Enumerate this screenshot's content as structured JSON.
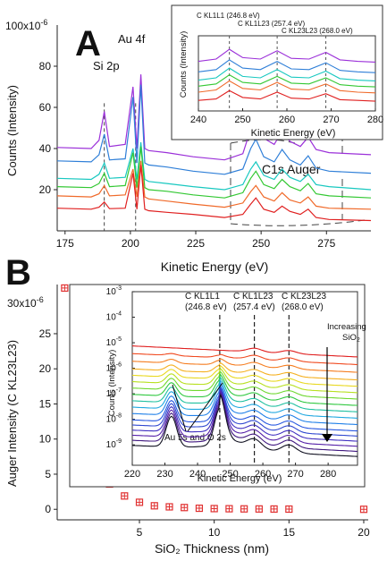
{
  "chart_data": [
    {
      "panel_label": "A",
      "type": "line",
      "xlabel": "Kinetic Energy (eV)",
      "ylabel": "Counts (Intensity)",
      "xlim": [
        172,
        292
      ],
      "ylim": [
        0,
        100
      ],
      "y_multiplier": "x10",
      "y_exponent": "-6",
      "y_top_label": "100",
      "x_ticks": [
        175,
        200,
        225,
        250,
        275
      ],
      "y_ticks": [
        20,
        40,
        60,
        80
      ],
      "annotations": [
        "Si 2p",
        "Au 4f",
        "C1s Auger"
      ],
      "dashed_markers_x": [
        190,
        202
      ],
      "series_colors": [
        "#9b30d9",
        "#2f7fd8",
        "#18c8c0",
        "#33c833",
        "#f06a2a",
        "#e02020"
      ],
      "series": [
        {
          "x": [
            172,
            185,
            188,
            190,
            192,
            198,
            201,
            202.5,
            204,
            205.5,
            207,
            214,
            224,
            236,
            243,
            246,
            248,
            251,
            255,
            258,
            261,
            265,
            268,
            271,
            276,
            292
          ],
          "values": [
            40.5,
            40,
            44,
            58,
            41,
            42,
            70,
            40,
            76,
            40,
            39,
            38,
            36,
            34.5,
            37.5,
            49.5,
            53,
            45,
            42,
            48.5,
            43.5,
            41,
            45.5,
            39.5,
            38,
            37
          ]
        },
        {
          "x": [
            172,
            185,
            188,
            190,
            192,
            198,
            201,
            202.5,
            204,
            205.5,
            207,
            214,
            224,
            236,
            243,
            246,
            248,
            251,
            255,
            258,
            261,
            265,
            268,
            271,
            276,
            292
          ],
          "values": [
            34,
            33.5,
            37,
            47,
            34.5,
            35,
            65,
            33,
            71,
            33,
            32,
            31,
            29,
            27.5,
            30,
            40,
            44.5,
            36,
            33.5,
            39.5,
            34.5,
            32,
            36.5,
            30.5,
            29,
            28
          ]
        },
        {
          "x": [
            172,
            185,
            188,
            190,
            192,
            198,
            201,
            202.5,
            204,
            205.5,
            207,
            214,
            224,
            236,
            243,
            246,
            248,
            251,
            255,
            258,
            261,
            265,
            268,
            271,
            276,
            292
          ],
          "values": [
            25.5,
            25,
            27.5,
            33,
            25.5,
            26,
            40,
            25,
            43,
            25,
            24,
            23,
            21.5,
            20,
            22.5,
            30,
            33.5,
            27,
            25,
            30,
            26,
            24,
            27.5,
            22.5,
            21.5,
            20
          ]
        },
        {
          "x": [
            172,
            185,
            188,
            190,
            192,
            198,
            201,
            202.5,
            204,
            205.5,
            207,
            214,
            224,
            236,
            243,
            246,
            248,
            251,
            255,
            258,
            261,
            265,
            268,
            271,
            276,
            292
          ],
          "values": [
            21.5,
            21,
            23,
            28,
            21.5,
            22,
            38,
            21,
            41,
            21,
            20,
            19.2,
            17.5,
            16,
            18.5,
            25.5,
            29,
            22.5,
            20.5,
            25,
            21.5,
            19.5,
            23,
            18,
            17,
            16
          ]
        },
        {
          "x": [
            172,
            185,
            188,
            190,
            192,
            198,
            201,
            202.5,
            204,
            205.5,
            207,
            214,
            224,
            236,
            243,
            246,
            248,
            251,
            255,
            258,
            261,
            265,
            268,
            271,
            276,
            292
          ],
          "values": [
            17,
            16.5,
            18,
            22,
            17,
            17.5,
            30,
            16.5,
            34,
            16.5,
            15.5,
            14.5,
            13,
            11.5,
            13.5,
            19,
            22,
            16.5,
            14.5,
            18.5,
            15,
            13.5,
            16.5,
            12,
            11,
            10.5
          ]
        },
        {
          "x": [
            172,
            185,
            188,
            190,
            192,
            198,
            201,
            202.5,
            204,
            205.5,
            207,
            214,
            224,
            236,
            243,
            246,
            248,
            251,
            255,
            258,
            261,
            265,
            268,
            271,
            276,
            292
          ],
          "values": [
            11,
            10.5,
            11.5,
            14,
            10.8,
            11,
            28,
            10.5,
            32,
            10.5,
            9.8,
            9,
            8,
            6.5,
            8,
            13,
            16,
            10.5,
            9,
            12,
            9.5,
            8,
            10.5,
            6.5,
            5.5,
            5
          ]
        }
      ]
    },
    {
      "panel_label": "A-inset",
      "type": "line",
      "xlabel": "Kinetic Energy (eV)",
      "ylabel": "Counts (Intensity)",
      "xlim": [
        240,
        280
      ],
      "ylim": [
        0,
        1
      ],
      "x_ticks": [
        240,
        250,
        260,
        270,
        280
      ],
      "peak_labels": [
        "C KL1L1 (246.8 eV)",
        "C KL1L23 (257.4 eV)",
        "C KL23L23 (268.0 eV)"
      ],
      "dashed_markers_x": [
        247,
        257.8,
        268.8
      ],
      "series_colors": [
        "#9b30d9",
        "#2f7fd8",
        "#18c8c0",
        "#33c833",
        "#f06a2a",
        "#e02020"
      ],
      "series": [
        {
          "x": [
            240,
            244,
            247,
            250,
            254,
            257.8,
            261,
            265,
            268.8,
            272,
            276,
            280
          ],
          "values": [
            0.66,
            0.69,
            0.82,
            0.71,
            0.69,
            0.8,
            0.7,
            0.69,
            0.78,
            0.68,
            0.66,
            0.65
          ]
        },
        {
          "x": [
            240,
            244,
            247,
            250,
            254,
            257.8,
            261,
            265,
            268.8,
            272,
            276,
            280
          ],
          "values": [
            0.52,
            0.55,
            0.68,
            0.57,
            0.55,
            0.66,
            0.56,
            0.55,
            0.64,
            0.54,
            0.52,
            0.51
          ]
        },
        {
          "x": [
            240,
            244,
            247,
            250,
            254,
            257.8,
            261,
            265,
            268.8,
            272,
            276,
            280
          ],
          "values": [
            0.41,
            0.44,
            0.57,
            0.46,
            0.44,
            0.55,
            0.45,
            0.44,
            0.53,
            0.43,
            0.41,
            0.4
          ]
        },
        {
          "x": [
            240,
            244,
            247,
            250,
            254,
            257.8,
            261,
            265,
            268.8,
            272,
            276,
            280
          ],
          "values": [
            0.33,
            0.36,
            0.48,
            0.38,
            0.36,
            0.46,
            0.37,
            0.36,
            0.44,
            0.35,
            0.33,
            0.32
          ]
        },
        {
          "x": [
            240,
            244,
            247,
            250,
            254,
            257.8,
            261,
            265,
            268.8,
            272,
            276,
            280
          ],
          "values": [
            0.25,
            0.28,
            0.4,
            0.3,
            0.28,
            0.38,
            0.29,
            0.28,
            0.36,
            0.27,
            0.25,
            0.24
          ]
        },
        {
          "x": [
            240,
            244,
            247,
            250,
            254,
            257.8,
            261,
            265,
            268.8,
            272,
            276,
            280
          ],
          "values": [
            0.14,
            0.16,
            0.27,
            0.18,
            0.16,
            0.25,
            0.17,
            0.16,
            0.23,
            0.15,
            0.14,
            0.13
          ]
        }
      ]
    },
    {
      "panel_label": "B",
      "type": "scatter",
      "xlabel": "SiO₂ Thickness (nm)",
      "ylabel": "Auger Intensity (C KL23L23)",
      "xlim": [
        -0.5,
        20.3
      ],
      "ylim": [
        -1.5,
        32
      ],
      "y_multiplier": "x10",
      "y_exponent": "-6",
      "y_top_label": "30",
      "x_ticks": [
        5,
        10,
        15,
        20
      ],
      "y_ticks": [
        0,
        5,
        10,
        15,
        20,
        25
      ],
      "marker_color": "#e03030",
      "x": [
        0,
        1,
        2,
        3,
        4,
        5,
        6,
        7,
        8,
        9,
        10,
        11,
        12,
        13,
        14,
        15,
        20
      ],
      "values": [
        31.5,
        15.3,
        7.3,
        3.6,
        1.9,
        1.0,
        0.5,
        0.35,
        0.25,
        0.15,
        0.1,
        0.08,
        0.06,
        0.05,
        0.04,
        0.03,
        0.0
      ]
    },
    {
      "panel_label": "B-inset",
      "type": "line",
      "xlabel": "Kinetic Energy (eV)",
      "ylabel": "Counts (Intensity)",
      "xlim": [
        220,
        289
      ],
      "y_scale": "log",
      "ylim_exp": [
        -9.8,
        -3
      ],
      "x_ticks": [
        220,
        230,
        240,
        250,
        260,
        270,
        280
      ],
      "y_ticks_exp": [
        -3,
        -4,
        -5,
        -6,
        -7,
        -8,
        -9
      ],
      "peak_labels": [
        {
          "name": "C KL1L1",
          "energy": "(246.8 eV)"
        },
        {
          "name": "C KL1L23",
          "energy": "(257.4 eV)"
        },
        {
          "name": "C KL23L23",
          "energy": "(268.0 eV)"
        }
      ],
      "annotation_increasing": [
        "Increasing",
        "SiO₂"
      ],
      "annotation_au": "Au 5s and O 2s",
      "dashed_markers_x": [
        246.8,
        257.4,
        268.0
      ],
      "series_colors": [
        "#e02020",
        "#f04a20",
        "#f57d20",
        "#f5b020",
        "#e8d820",
        "#b8e020",
        "#70d830",
        "#30c840",
        "#20c0a0",
        "#20a8e0",
        "#2080e8",
        "#2858e0",
        "#3048d0",
        "#4030c0",
        "#5520a8",
        "#401880",
        "#101020"
      ],
      "base_exponents": [
        -5.3,
        -5.6,
        -5.9,
        -6.2,
        -6.45,
        -6.7,
        -6.95,
        -7.2,
        -7.45,
        -7.7,
        -7.95,
        -8.2,
        -8.4,
        -8.6,
        -8.8,
        -9.0,
        -9.2
      ]
    }
  ]
}
